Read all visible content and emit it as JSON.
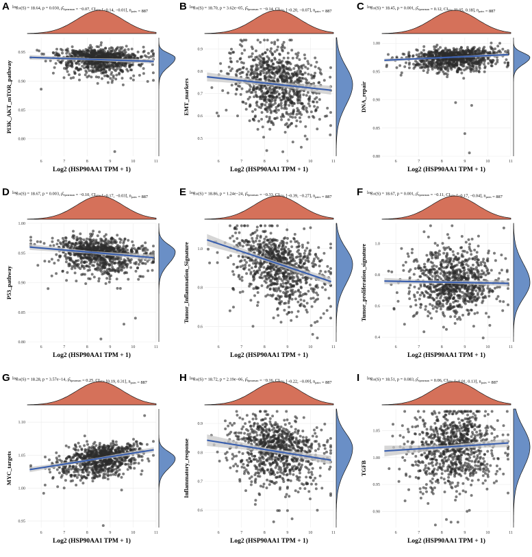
{
  "chart_data": [
    {
      "type": "scatter",
      "letter": "A",
      "stats": {
        "log10s": "18.64",
        "p": "0.030",
        "rho": "−0.07",
        "ci": "[−0.14, −0.01]",
        "npairs": "887"
      },
      "xlabel": "Log2 (HSP90AA1 TPM + 1)",
      "ylabel": "PI3K_AKT_mTOR_pathway",
      "xlim": [
        5.4,
        11
      ],
      "ylim": [
        0.77,
        0.975
      ],
      "xticks": [
        "6",
        "7",
        "8",
        "9",
        "10",
        "11"
      ],
      "yticks": [
        "0.95",
        "0.90",
        "0.85",
        "0.80"
      ],
      "ytick_values": [
        0.95,
        0.9,
        0.85,
        0.8
      ],
      "trend": {
        "x": [
          5.5,
          10.9
        ],
        "y": [
          0.941,
          0.934
        ]
      },
      "ci_band": [
        0.004,
        0.002,
        0.004
      ],
      "x_mean": 8.55,
      "x_sd": 0.95,
      "y_center": 0.94,
      "y_sd": 0.008,
      "y_sd_low": 0.015,
      "slope": -0.0013,
      "outliers": [
        [
          9.2,
          0.778
        ],
        [
          6.0,
          0.886
        ],
        [
          7.3,
          0.905
        ],
        [
          9.9,
          0.905
        ]
      ]
    },
    {
      "type": "scatter",
      "letter": "B",
      "stats": {
        "log10s": "18.70",
        "p": "3.62e−05",
        "rho": "−0.14",
        "ci": "[−0.20, −0.07]",
        "npairs": "887"
      },
      "xlabel": "Log2 (HSP90AA1 TPM + 1)",
      "ylabel": "EMT_markers",
      "xlim": [
        5.4,
        11
      ],
      "ylim": [
        0.42,
        0.95
      ],
      "xticks": [
        "6",
        "7",
        "8",
        "9",
        "10",
        "11"
      ],
      "yticks": [
        "0.9",
        "0.8",
        "0.7",
        "0.6",
        "0.5"
      ],
      "ytick_values": [
        0.9,
        0.8,
        0.7,
        0.6,
        0.5
      ],
      "trend": {
        "x": [
          5.5,
          10.9
        ],
        "y": [
          0.775,
          0.715
        ]
      },
      "ci_band": [
        0.02,
        0.008,
        0.02
      ],
      "x_mean": 8.55,
      "x_sd": 0.95,
      "y_center": 0.74,
      "y_sd": 0.08,
      "y_sd_low": 0.09,
      "slope": -0.011,
      "outliers": [
        [
          8.1,
          0.445
        ],
        [
          8.8,
          0.44
        ],
        [
          9.6,
          0.46
        ],
        [
          6.0,
          0.6
        ]
      ]
    },
    {
      "type": "scatter",
      "letter": "C",
      "stats": {
        "log10s": "18.45",
        "p": "0.001",
        "rho": "0.12",
        "ci": "[0.05, 0.18]",
        "npairs": "887"
      },
      "xlabel": "Log2 (HSP90AA1 TPM + 1)",
      "ylabel": "DNA_repair",
      "xlim": [
        5.4,
        11
      ],
      "ylim": [
        0.8,
        1.01
      ],
      "xticks": [
        "6",
        "7",
        "8",
        "9",
        "10",
        "11"
      ],
      "yticks": [
        "1.00",
        "0.95",
        "0.90",
        "0.85",
        "0.80"
      ],
      "ytick_values": [
        1.0,
        0.95,
        0.9,
        0.85,
        0.8
      ],
      "trend": {
        "x": [
          5.5,
          10.9
        ],
        "y": [
          0.97,
          0.98
        ]
      },
      "ci_band": [
        0.003,
        0.001,
        0.003
      ],
      "x_mean": 8.55,
      "x_sd": 0.95,
      "y_center": 0.975,
      "y_sd": 0.008,
      "y_sd_low": 0.012,
      "slope": 0.0018,
      "outliers": [
        [
          9.2,
          0.806
        ],
        [
          9.0,
          0.84
        ],
        [
          9.3,
          0.89
        ],
        [
          8.6,
          0.895
        ]
      ]
    },
    {
      "type": "scatter",
      "letter": "D",
      "stats": {
        "log10s": "18.67",
        "p": "0.003",
        "rho": "−0.10",
        "ci": "[−0.17, −0.03]",
        "npairs": "887"
      },
      "xlabel": "Log2 (HSP90AA1 TPM + 1)",
      "ylabel": "P53_pathway",
      "xlim": [
        5.4,
        11
      ],
      "ylim": [
        0.8,
        1.0
      ],
      "xticks": [
        "6",
        "7",
        "8",
        "9",
        "10",
        "11"
      ],
      "yticks": [
        "1.00",
        "0.95",
        "0.90",
        "0.85",
        "0.80"
      ],
      "ytick_values": [
        1.0,
        0.95,
        0.9,
        0.85,
        0.8
      ],
      "trend": {
        "x": [
          5.5,
          10.9
        ],
        "y": [
          0.96,
          0.942
        ]
      },
      "ci_band": [
        0.005,
        0.002,
        0.005
      ],
      "x_mean": 8.55,
      "x_sd": 0.95,
      "y_center": 0.952,
      "y_sd": 0.012,
      "y_sd_low": 0.02,
      "slope": -0.0033,
      "outliers": [
        [
          8.6,
          0.805
        ],
        [
          9.6,
          0.83
        ],
        [
          10.1,
          0.84
        ],
        [
          6.3,
          0.89
        ]
      ]
    },
    {
      "type": "scatter",
      "letter": "E",
      "stats": {
        "log10s": "18.86",
        "p": "1.24e−24",
        "rho": "−0.33",
        "ci": "[−0.39, −0.27]",
        "npairs": "887"
      },
      "xlabel": "Log2 (HSP90AA1 TPM + 1)",
      "ylabel": "Tumor_Inflammation_Signature",
      "xlim": [
        5.4,
        11
      ],
      "ylim": [
        0.52,
        1.13
      ],
      "xticks": [
        "6",
        "7",
        "8",
        "9",
        "10",
        "11"
      ],
      "yticks": [
        "1.0",
        "0.8",
        "0.6"
      ],
      "ytick_values": [
        1.0,
        0.8,
        0.6
      ],
      "trend": {
        "x": [
          5.5,
          10.9
        ],
        "y": [
          1.045,
          0.83
        ]
      },
      "ci_band": [
        0.03,
        0.008,
        0.02
      ],
      "x_mean": 8.55,
      "x_sd": 0.95,
      "y_center": 0.92,
      "y_sd": 0.08,
      "y_sd_low": 0.1,
      "slope": -0.04,
      "outliers": [
        [
          10.3,
          0.54
        ],
        [
          6.5,
          0.68
        ],
        [
          7.5,
          0.6
        ],
        [
          10.2,
          0.62
        ]
      ]
    },
    {
      "type": "scatter",
      "letter": "F",
      "stats": {
        "log10s": "18.67",
        "p": "0.001",
        "rho": "−0.11",
        "ci": "[−0.17, −0.04]",
        "npairs": "887"
      },
      "xlabel": "Log2 (HSP90AA1 TPM + 1)",
      "ylabel": "Tumor_proliferation_signature",
      "xlim": [
        5.4,
        11
      ],
      "ylim": [
        0.37,
        1.13
      ],
      "xticks": [
        "6",
        "7",
        "8",
        "9",
        "10",
        "11"
      ],
      "yticks": [
        "1.0",
        "0.8",
        "0.6",
        "0.4"
      ],
      "ytick_values": [
        1.0,
        0.8,
        0.6,
        0.4
      ],
      "trend": {
        "x": [
          5.5,
          10.9
        ],
        "y": [
          0.76,
          0.745
        ]
      },
      "ci_band": [
        0.02,
        0.008,
        0.02
      ],
      "x_mean": 8.55,
      "x_sd": 0.95,
      "y_center": 0.75,
      "y_sd": 0.12,
      "y_sd_low": 0.1,
      "slope": -0.003,
      "outliers": [
        [
          9.8,
          0.395
        ],
        [
          10.7,
          1.1
        ],
        [
          8.2,
          0.45
        ],
        [
          6.1,
          0.63
        ]
      ]
    },
    {
      "type": "scatter",
      "letter": "G",
      "stats": {
        "log10s": "18.28",
        "p": "3.57e−14",
        "rho": "0.25",
        "ci": "[0.19, 0.31]",
        "npairs": "887"
      },
      "xlabel": "Log2 (HSP90AA1 TPM + 1)",
      "ylabel": "MYC_targets",
      "xlim": [
        5.4,
        11
      ],
      "ylim": [
        0.94,
        1.12
      ],
      "xticks": [
        "6",
        "7",
        "8",
        "9",
        "10",
        "11"
      ],
      "yticks": [
        "1.10",
        "1.05",
        "1.00",
        "0.95"
      ],
      "ytick_values": [
        1.1,
        1.05,
        1.0,
        0.95
      ],
      "trend": {
        "x": [
          5.5,
          10.9
        ],
        "y": [
          1.028,
          1.058
        ]
      },
      "ci_band": [
        0.004,
        0.0015,
        0.004
      ],
      "x_mean": 8.55,
      "x_sd": 0.95,
      "y_center": 1.045,
      "y_sd": 0.01,
      "y_sd_low": 0.015,
      "slope": 0.0055,
      "outliers": [
        [
          8.7,
          0.943
        ],
        [
          9.5,
          0.997
        ],
        [
          7.0,
          1.0
        ],
        [
          10.5,
          1.11
        ]
      ]
    },
    {
      "type": "scatter",
      "letter": "H",
      "stats": {
        "log10s": "18.72",
        "p": "2.19e−06",
        "rho": "−0.16",
        "ci": "[−0.22, −0.09]",
        "npairs": "887"
      },
      "xlabel": "Log2 (HSP90AA1 TPM + 1)",
      "ylabel": "Inflammatory_response",
      "xlim": [
        5.4,
        11
      ],
      "ylim": [
        0.54,
        0.95
      ],
      "xticks": [
        "6",
        "7",
        "8",
        "9",
        "10",
        "11"
      ],
      "yticks": [
        "0.9",
        "0.8",
        "0.7",
        "0.6"
      ],
      "ytick_values": [
        0.9,
        0.8,
        0.7,
        0.6
      ],
      "trend": {
        "x": [
          5.5,
          10.9
        ],
        "y": [
          0.842,
          0.773
        ]
      },
      "ci_band": [
        0.02,
        0.006,
        0.015
      ],
      "x_mean": 8.55,
      "x_sd": 0.95,
      "y_center": 0.815,
      "y_sd": 0.05,
      "y_sd_low": 0.07,
      "slope": -0.013,
      "outliers": [
        [
          8.4,
          0.56
        ],
        [
          9.2,
          0.57
        ],
        [
          7.6,
          0.62
        ],
        [
          10.3,
          0.6
        ]
      ]
    },
    {
      "type": "scatter",
      "letter": "I",
      "stats": {
        "log10s": "18.51",
        "p": "0.083",
        "rho": "0.06",
        "ci": "[−0.01, 0.13]",
        "npairs": "887"
      },
      "xlabel": "Log2 (HSP90AA1 TPM + 1)",
      "ylabel": "TGFB",
      "xlim": [
        5.4,
        11
      ],
      "ylim": [
        0.87,
        1.09
      ],
      "xticks": [
        "6",
        "7",
        "8",
        "9",
        "10",
        "11"
      ],
      "yticks": [
        "1.05",
        "1.00",
        "0.95",
        "0.90"
      ],
      "ytick_values": [
        1.05,
        1.0,
        0.95,
        0.9
      ],
      "trend": {
        "x": [
          5.5,
          10.9
        ],
        "y": [
          1.012,
          1.027
        ]
      },
      "ci_band": [
        0.01,
        0.003,
        0.008
      ],
      "x_mean": 8.55,
      "x_sd": 0.95,
      "y_center": 1.02,
      "y_sd": 0.035,
      "y_sd_low": 0.04,
      "slope": 0.003,
      "outliers": [
        [
          8.2,
          0.885
        ],
        [
          8.7,
          0.88
        ],
        [
          9.1,
          0.9
        ],
        [
          6.3,
          1.0
        ]
      ]
    }
  ],
  "colors": {
    "point": "#2b2b2b",
    "trend": "#3a5fae",
    "ci": "#c8c8c8",
    "top_density": "#d5715a",
    "right_density": "#6a8fc6",
    "grid": "#ebebeb"
  }
}
